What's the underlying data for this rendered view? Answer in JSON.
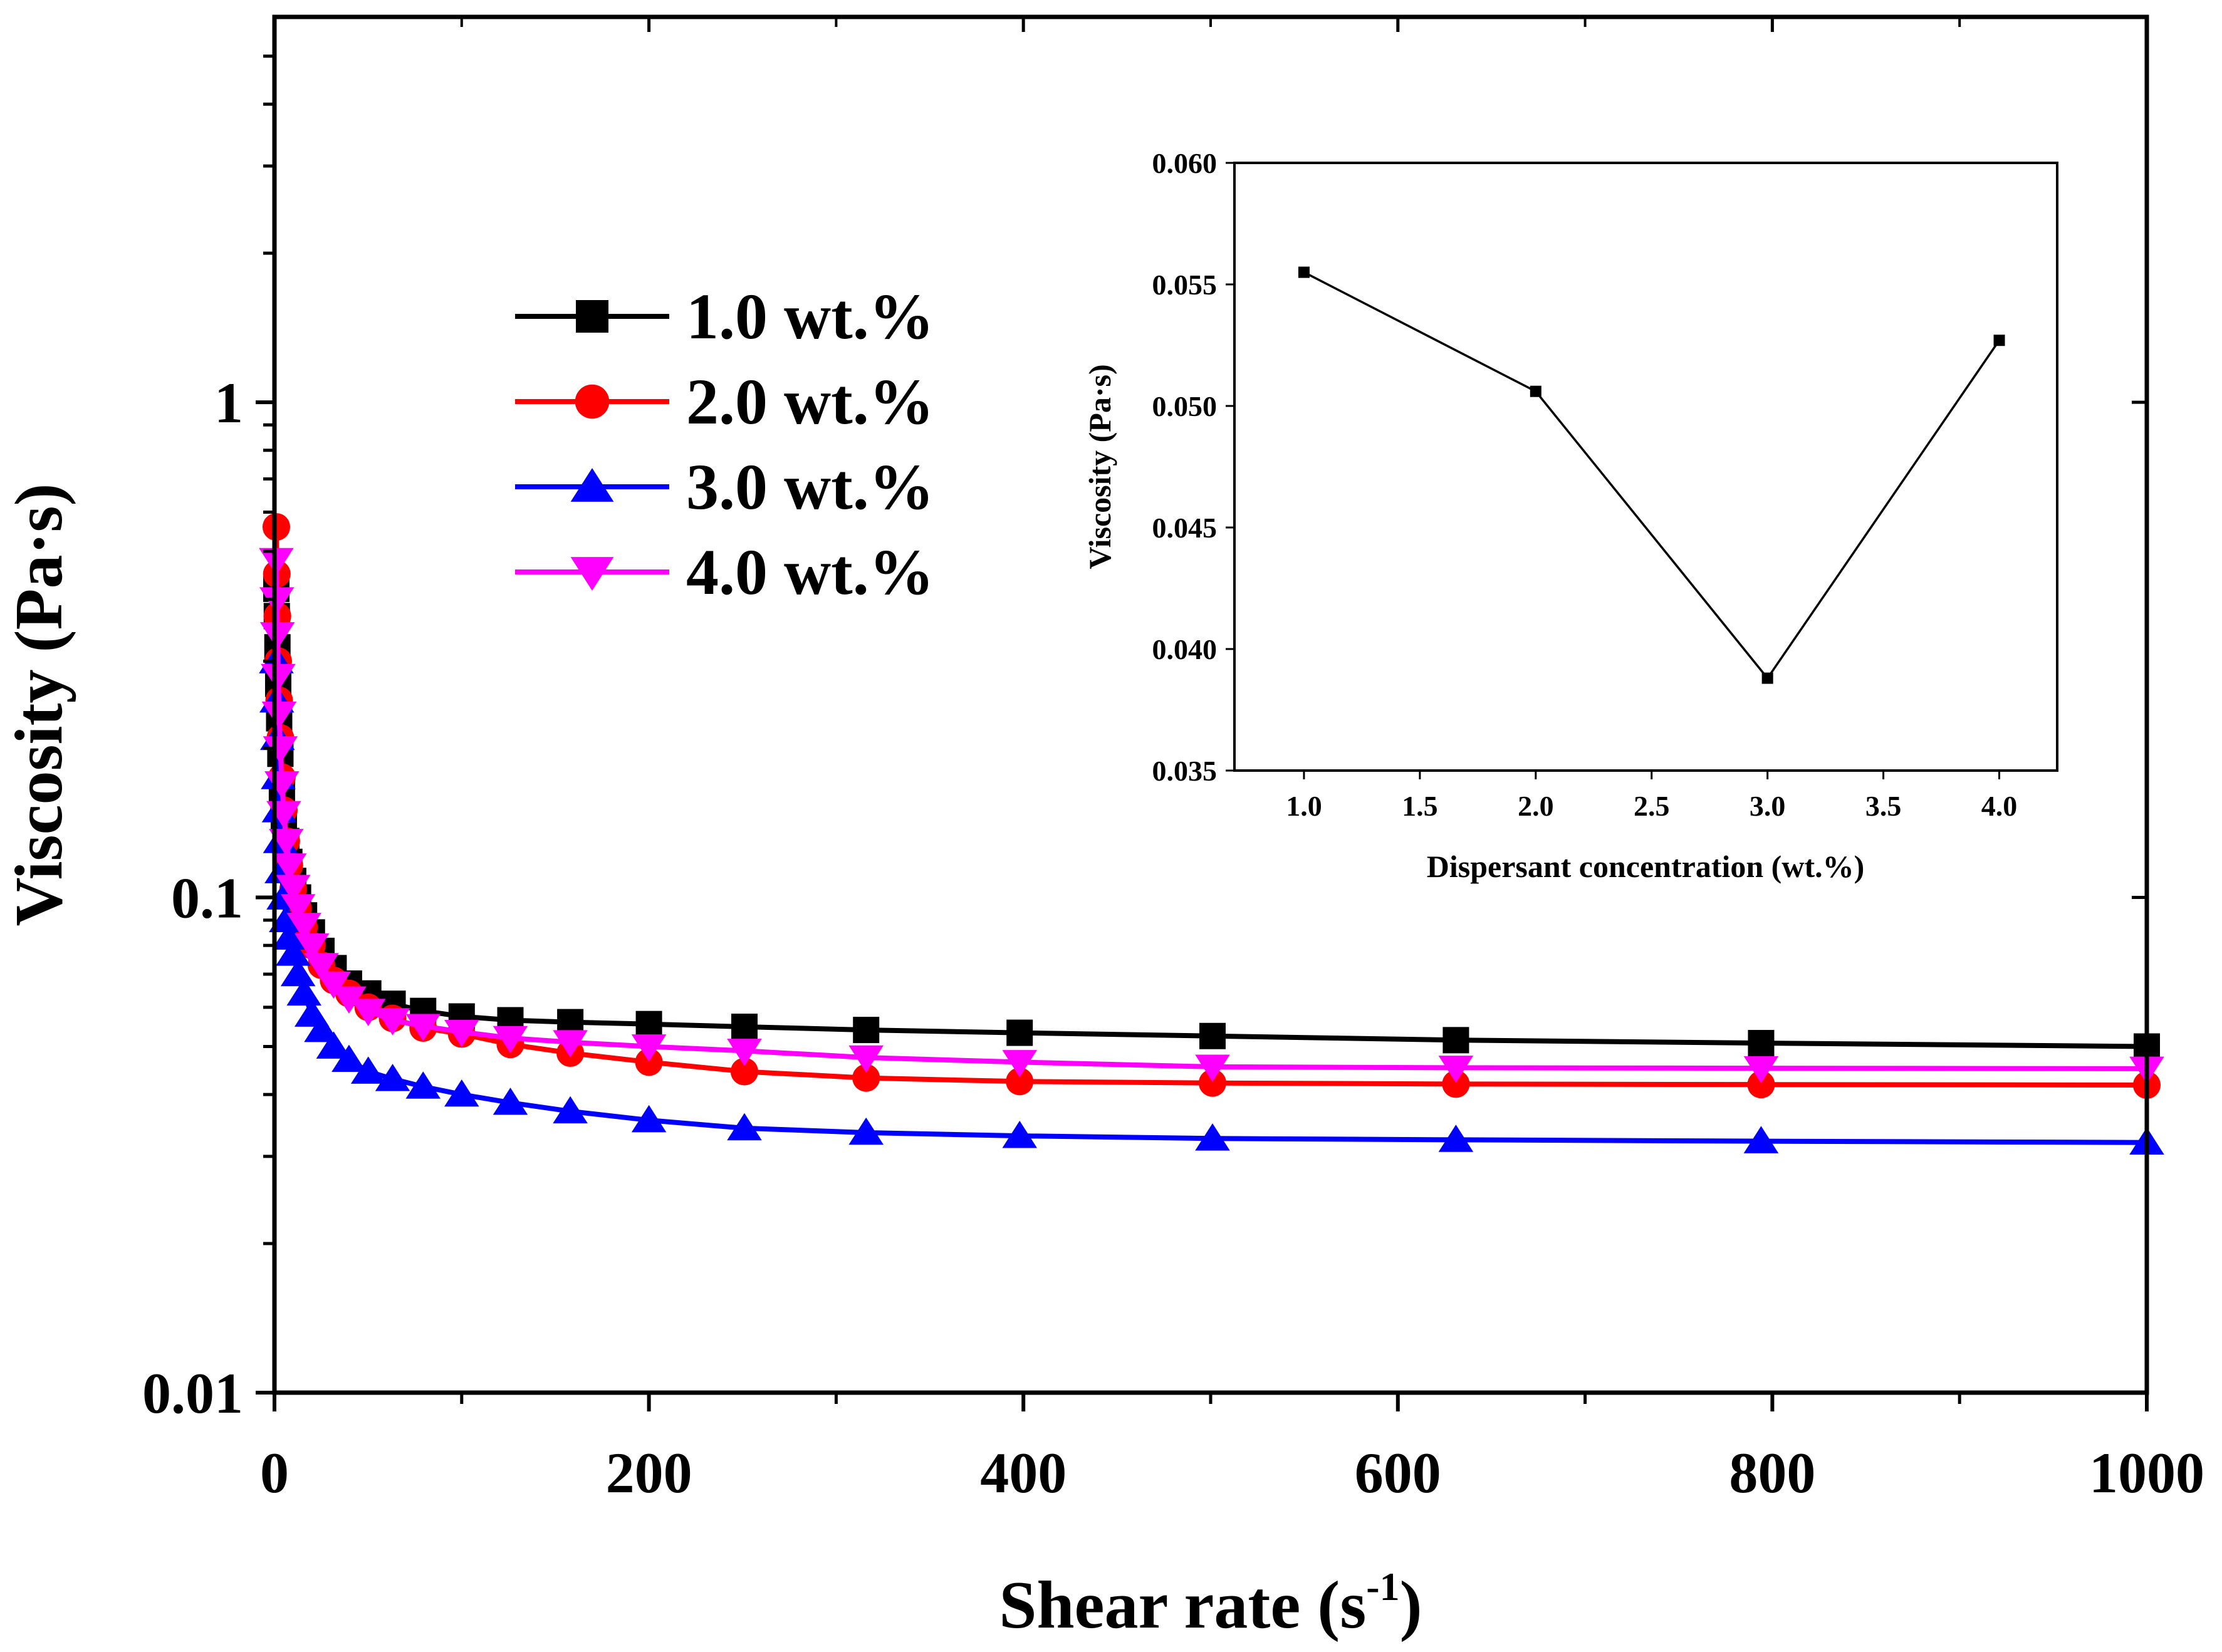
{
  "chart_data": [
    {
      "type": "line",
      "title": "",
      "xlabel": "Shear rate",
      "xlabel_unit_base": "s",
      "xlabel_unit_exp": "-1",
      "xlabel_close": ")",
      "ylabel": "Viscosity (Pa·s)",
      "xscale": "linear",
      "yscale": "log",
      "xlim": [
        0,
        1000
      ],
      "ylim": [
        0.01,
        6
      ],
      "xticks": [
        0,
        200,
        400,
        600,
        800,
        1000
      ],
      "xtick_labels": [
        "0",
        "200",
        "400",
        "600",
        "800",
        "1000"
      ],
      "yticks": [
        0.01,
        0.1,
        1
      ],
      "ytick_labels": [
        "0.01",
        "0.1",
        "1"
      ],
      "legend_position": "upper-left-center",
      "series": [
        {
          "name": "1.0 wt.%",
          "color": "#000000",
          "marker": "square",
          "x": [
            1,
            1.26,
            1.58,
            2,
            2.51,
            3.16,
            3.98,
            5.01,
            6.31,
            7.94,
            10,
            12.6,
            15.8,
            20,
            25.1,
            31.6,
            39.8,
            50.1,
            63.1,
            79.4,
            100,
            126,
            158,
            200,
            251,
            316,
            398,
            501,
            631,
            794,
            1000
          ],
          "y": [
            0.42,
            0.37,
            0.32,
            0.27,
            0.23,
            0.195,
            0.165,
            0.145,
            0.13,
            0.118,
            0.108,
            0.1,
            0.092,
            0.085,
            0.078,
            0.072,
            0.067,
            0.064,
            0.061,
            0.059,
            0.0575,
            0.0565,
            0.056,
            0.0555,
            0.0548,
            0.054,
            0.0533,
            0.0525,
            0.0515,
            0.0508,
            0.05
          ]
        },
        {
          "name": "2.0 wt.%",
          "color": "#ff0000",
          "marker": "circle",
          "x": [
            1,
            1.26,
            1.58,
            2,
            2.51,
            3.16,
            3.98,
            5.01,
            6.31,
            7.94,
            10,
            12.6,
            15.8,
            20,
            25.1,
            31.6,
            39.8,
            50.1,
            63.1,
            79.4,
            100,
            126,
            158,
            200,
            251,
            316,
            398,
            501,
            631,
            794,
            1000
          ],
          "y": [
            0.56,
            0.45,
            0.37,
            0.3,
            0.25,
            0.21,
            0.175,
            0.15,
            0.13,
            0.116,
            0.104,
            0.095,
            0.087,
            0.08,
            0.073,
            0.068,
            0.064,
            0.06,
            0.057,
            0.0545,
            0.053,
            0.0505,
            0.0485,
            0.0465,
            0.0445,
            0.0432,
            0.0425,
            0.0422,
            0.042,
            0.0419,
            0.0418
          ]
        },
        {
          "name": "3.0 wt.%",
          "color": "#0000ff",
          "marker": "triangle-up",
          "x": [
            1,
            1.26,
            1.58,
            2,
            2.51,
            3.16,
            3.98,
            5.01,
            6.31,
            7.94,
            10,
            12.6,
            15.8,
            20,
            25.1,
            31.6,
            39.8,
            50.1,
            63.1,
            79.4,
            100,
            126,
            158,
            200,
            251,
            316,
            398,
            501,
            631,
            794,
            1000
          ],
          "y": [
            0.3,
            0.25,
            0.21,
            0.175,
            0.15,
            0.13,
            0.113,
            0.1,
            0.09,
            0.083,
            0.077,
            0.07,
            0.064,
            0.058,
            0.054,
            0.05,
            0.047,
            0.0445,
            0.043,
            0.0415,
            0.04,
            0.0385,
            0.037,
            0.0355,
            0.0342,
            0.0335,
            0.033,
            0.0326,
            0.0324,
            0.0322,
            0.032
          ]
        },
        {
          "name": "4.0 wt.%",
          "color": "#ff00ff",
          "marker": "triangle-down",
          "x": [
            1,
            1.26,
            1.58,
            2,
            2.51,
            3.16,
            3.98,
            5.01,
            6.31,
            7.94,
            10,
            12.6,
            15.8,
            20,
            25.1,
            31.6,
            39.8,
            50.1,
            63.1,
            79.4,
            100,
            126,
            158,
            200,
            251,
            316,
            398,
            501,
            631,
            794,
            1000
          ],
          "y": [
            0.48,
            0.4,
            0.34,
            0.28,
            0.235,
            0.2,
            0.17,
            0.148,
            0.13,
            0.116,
            0.105,
            0.096,
            0.088,
            0.08,
            0.073,
            0.067,
            0.0625,
            0.059,
            0.0565,
            0.055,
            0.0535,
            0.052,
            0.051,
            0.05,
            0.049,
            0.0475,
            0.0465,
            0.0455,
            0.0453,
            0.0452,
            0.0451
          ]
        }
      ]
    },
    {
      "type": "line",
      "title": "",
      "xlabel": "Dispersant concentration (wt.%)",
      "ylabel": "Viscosity (Pa·s)",
      "xlim": [
        0.7,
        4.25
      ],
      "ylim": [
        0.035,
        0.06
      ],
      "xticks": [
        1.0,
        1.5,
        2.0,
        2.5,
        3.0,
        3.5,
        4.0
      ],
      "xtick_labels": [
        "1.0",
        "1.5",
        "2.0",
        "2.5",
        "3.0",
        "3.5",
        "4.0"
      ],
      "yticks": [
        0.035,
        0.04,
        0.045,
        0.05,
        0.055,
        0.06
      ],
      "ytick_labels": [
        "0.035",
        "0.040",
        "0.045",
        "0.050",
        "0.055",
        "0.060"
      ],
      "series": [
        {
          "name": "Viscosity",
          "color": "#000000",
          "marker": "square",
          "x": [
            1.0,
            2.0,
            3.0,
            4.0
          ],
          "y": [
            0.0555,
            0.0506,
            0.0388,
            0.0527
          ]
        }
      ]
    }
  ]
}
